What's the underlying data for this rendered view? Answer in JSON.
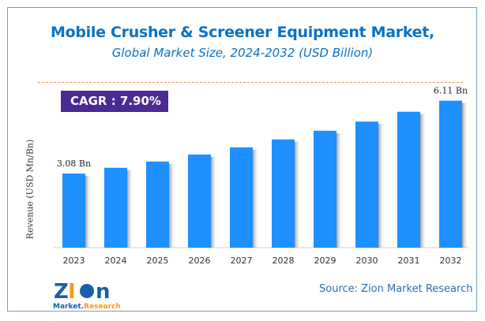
{
  "header": {
    "title": "Mobile Crusher & Screener Equipment Market,",
    "subtitle": "Global Market Size, 2024-2032 (USD Billion)"
  },
  "cagr": "CAGR : 7.90%",
  "source": "Source: Zion Market Research",
  "logo": {
    "text": "Zion",
    "subtext": "Market.Research"
  },
  "colors": {
    "bar": "#1e90ff",
    "title": "#0a72c4",
    "cagr_bg": "#4c2a93",
    "dash": "#f2945a"
  },
  "chart_data": {
    "type": "bar",
    "ylabel": "Revenue (USD Mn/Bn)",
    "categories": [
      "2023",
      "2024",
      "2025",
      "2026",
      "2027",
      "2028",
      "2029",
      "2030",
      "2031",
      "2032"
    ],
    "values": [
      3.08,
      3.32,
      3.58,
      3.87,
      4.17,
      4.5,
      4.86,
      5.24,
      5.65,
      6.11
    ],
    "data_labels": {
      "0": "3.08 Bn",
      "9": "6.11 Bn"
    },
    "ylim": [
      0,
      6.6
    ],
    "grid": false
  }
}
